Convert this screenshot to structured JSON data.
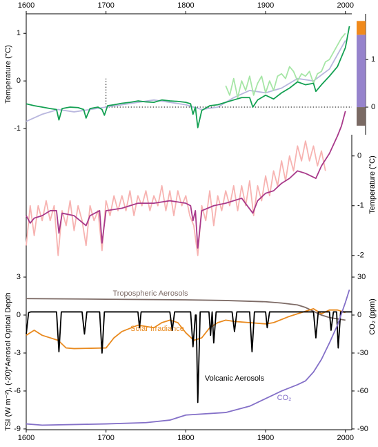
{
  "chart_data": [
    {
      "type": "line",
      "ylabel": "Temperature (°C)",
      "xaxis_position": "top",
      "xlim": [
        1600,
        2008
      ],
      "xticks": [
        1600,
        1700,
        1800,
        1900,
        2000
      ],
      "ylim": [
        -1.13,
        1.41
      ],
      "yticks": [
        -1,
        0,
        1
      ],
      "y2lim": [
        -0.58,
        1.96
      ],
      "y2ticks": [
        0,
        1
      ],
      "reference_line": -0.55,
      "reference_start": 1700,
      "bars": [
        {
          "color": "#7a6a64",
          "value": -0.39
        },
        {
          "color": "#9683cc",
          "value": 1.52
        },
        {
          "color": "#f08a1c",
          "value": 0.29
        }
      ],
      "series": [
        {
          "color": "#b9b7de",
          "x": [
            1600,
            1620,
            1640,
            1660,
            1680,
            1700,
            1720,
            1740,
            1760,
            1780,
            1800,
            1820,
            1840,
            1860,
            1880,
            1900,
            1920,
            1940,
            1960,
            1980,
            2000
          ],
          "values": [
            -0.85,
            -0.7,
            -0.6,
            -0.65,
            -0.6,
            -0.55,
            -0.5,
            -0.45,
            -0.4,
            -0.45,
            -0.5,
            -0.6,
            -0.55,
            -0.35,
            -0.2,
            -0.25,
            -0.15,
            0.05,
            0,
            0.25,
            0.85
          ]
        },
        {
          "color": "#a6e6a6",
          "x": [
            1850,
            1855,
            1860,
            1865,
            1870,
            1875,
            1880,
            1885,
            1890,
            1895,
            1900,
            1905,
            1910,
            1915,
            1920,
            1925,
            1930,
            1935,
            1940,
            1945,
            1950,
            1955,
            1960,
            1965,
            1970,
            1975,
            1980,
            1985,
            1990,
            1995,
            2000
          ],
          "values": [
            -0.1,
            -0.3,
            0.05,
            -0.35,
            0.0,
            -0.2,
            0.1,
            -0.3,
            -0.05,
            0.1,
            -0.25,
            0.0,
            -0.2,
            0.1,
            0.15,
            0.05,
            0.3,
            0.2,
            0.0,
            0.15,
            0.1,
            0.2,
            -0.05,
            0.15,
            0.2,
            0.4,
            0.45,
            0.6,
            0.75,
            0.9,
            1.0
          ]
        },
        {
          "color": "#13a052",
          "x": [
            1600,
            1610,
            1620,
            1630,
            1638,
            1641,
            1645,
            1655,
            1665,
            1672,
            1675,
            1680,
            1690,
            1695,
            1698,
            1702,
            1710,
            1720,
            1730,
            1740,
            1750,
            1760,
            1770,
            1780,
            1790,
            1800,
            1806,
            1809,
            1812,
            1815,
            1820,
            1830,
            1840,
            1850,
            1860,
            1870,
            1880,
            1884,
            1890,
            1900,
            1910,
            1920,
            1930,
            1940,
            1950,
            1960,
            1963,
            1970,
            1980,
            1990,
            1995,
            2000,
            2005
          ],
          "values": [
            -0.48,
            -0.52,
            -0.55,
            -0.58,
            -0.6,
            -0.82,
            -0.58,
            -0.55,
            -0.56,
            -0.6,
            -0.78,
            -0.58,
            -0.55,
            -0.6,
            -0.72,
            -0.52,
            -0.5,
            -0.47,
            -0.45,
            -0.42,
            -0.44,
            -0.45,
            -0.4,
            -0.42,
            -0.43,
            -0.45,
            -0.48,
            -0.7,
            -0.55,
            -0.98,
            -0.62,
            -0.52,
            -0.5,
            -0.45,
            -0.4,
            -0.35,
            -0.35,
            -0.55,
            -0.4,
            -0.3,
            -0.38,
            -0.25,
            -0.15,
            -0.02,
            -0.08,
            -0.05,
            -0.22,
            -0.08,
            0.1,
            0.3,
            0.5,
            0.7,
            1.15
          ]
        }
      ]
    },
    {
      "type": "line",
      "ylabel": "Temperature (°C)",
      "yaxis_position": "right",
      "xlim": [
        1600,
        2008
      ],
      "ylim": [
        -2.35,
        1.19
      ],
      "yticks": [
        -2,
        -1,
        0
      ],
      "series": [
        {
          "color": "#f7b3b1",
          "x": [
            1600,
            1605,
            1610,
            1615,
            1620,
            1625,
            1630,
            1635,
            1640,
            1645,
            1650,
            1655,
            1660,
            1665,
            1670,
            1675,
            1680,
            1685,
            1690,
            1695,
            1700,
            1705,
            1710,
            1715,
            1720,
            1725,
            1730,
            1735,
            1740,
            1745,
            1750,
            1755,
            1760,
            1765,
            1770,
            1775,
            1780,
            1785,
            1790,
            1795,
            1800,
            1805,
            1810,
            1815,
            1820,
            1825,
            1830,
            1835,
            1840,
            1845,
            1850,
            1855,
            1860,
            1865,
            1870,
            1875,
            1880,
            1885,
            1890,
            1895,
            1900,
            1905,
            1910,
            1915,
            1920,
            1925,
            1930,
            1935,
            1940,
            1945,
            1950,
            1955,
            1960,
            1965,
            1970,
            1975
          ],
          "values": [
            -1.8,
            -1.0,
            -1.6,
            -1.0,
            -1.3,
            -0.9,
            -1.3,
            -1.0,
            -2.0,
            -1.1,
            -1.4,
            -0.9,
            -1.5,
            -1.0,
            -1.3,
            -1.8,
            -1.0,
            -1.3,
            -1.1,
            -1.9,
            -0.9,
            -1.2,
            -0.8,
            -1.1,
            -0.8,
            -1.1,
            -0.7,
            -1.2,
            -0.8,
            -1.0,
            -0.7,
            -1.1,
            -0.8,
            -1.0,
            -0.6,
            -1.1,
            -0.7,
            -1.2,
            -0.7,
            -1.0,
            -0.8,
            -1.2,
            -1.4,
            -2.0,
            -1.0,
            -1.3,
            -0.7,
            -1.4,
            -0.8,
            -1.1,
            -0.7,
            -1.0,
            -0.6,
            -1.1,
            -0.6,
            -1.0,
            -0.5,
            -1.2,
            -0.6,
            -0.9,
            -0.4,
            -0.8,
            -0.3,
            -0.6,
            -0.1,
            -0.5,
            0.0,
            -0.3,
            0.2,
            -0.1,
            0.3,
            -0.1,
            0.2,
            -0.2,
            0.1,
            -0.3
          ]
        },
        {
          "color": "#a8398a",
          "x": [
            1600,
            1605,
            1610,
            1620,
            1630,
            1638,
            1641,
            1645,
            1660,
            1675,
            1680,
            1692,
            1695,
            1700,
            1720,
            1740,
            1760,
            1780,
            1800,
            1806,
            1809,
            1812,
            1815,
            1820,
            1835,
            1850,
            1870,
            1884,
            1890,
            1900,
            1910,
            1920,
            1930,
            1940,
            1950,
            1963,
            1970,
            1980,
            1990,
            1995,
            2000
          ],
          "values": [
            -1.2,
            -1.35,
            -1.25,
            -1.2,
            -1.1,
            -1.1,
            -1.55,
            -1.15,
            -1.2,
            -1.4,
            -1.2,
            -1.1,
            -1.75,
            -1.1,
            -1.05,
            -0.95,
            -0.95,
            -0.9,
            -0.95,
            -1.0,
            -1.3,
            -1.1,
            -1.85,
            -1.1,
            -1.0,
            -0.95,
            -0.85,
            -1.15,
            -0.9,
            -0.75,
            -0.7,
            -0.55,
            -0.45,
            -0.3,
            -0.35,
            -0.45,
            -0.2,
            0.05,
            0.4,
            0.6,
            0.9
          ]
        }
      ]
    },
    {
      "type": "line",
      "ylabel": "TSI (W m⁻²), (-20)*Aerosol Optical Depth",
      "y2label": "CO₂ (ppm)",
      "xaxis_position": "bottom",
      "xlim": [
        1600,
        2008
      ],
      "xticks": [
        1600,
        1700,
        1800,
        1900,
        2000
      ],
      "ylim": [
        -9.06,
        3.33
      ],
      "yticks": [
        -9,
        -6,
        -3,
        0,
        3
      ],
      "y2lim": [
        -90.6,
        33.3
      ],
      "y2ticks": [
        -90,
        -60,
        -30,
        0,
        30
      ],
      "series": [
        {
          "name": "Tropospheric Aerosols",
          "color": "#7d6b66",
          "x": [
            1600,
            1700,
            1800,
            1850,
            1900,
            1920,
            1940,
            1950,
            1960,
            1970,
            1980,
            1990,
            2000
          ],
          "values": [
            1.3,
            1.25,
            1.2,
            1.15,
            1.05,
            0.95,
            0.8,
            0.6,
            0.3,
            0.0,
            -0.2,
            -0.3,
            -0.4
          ]
        },
        {
          "name": "Solar Irradiance",
          "color": "#e98a1f",
          "x": [
            1600,
            1610,
            1620,
            1640,
            1650,
            1660,
            1700,
            1710,
            1720,
            1740,
            1760,
            1770,
            1780,
            1790,
            1800,
            1810,
            1820,
            1830,
            1840,
            1850,
            1860,
            1880,
            1900,
            1910,
            1930,
            1950,
            1960,
            1970,
            1980,
            1990,
            2000
          ],
          "values": [
            -1.6,
            -1.2,
            -1.6,
            -2.0,
            -2.6,
            -2.65,
            -2.6,
            -1.8,
            -1.3,
            -0.8,
            -1.0,
            -0.6,
            -0.4,
            -0.6,
            -1.4,
            -2.0,
            -1.8,
            -1.0,
            -0.6,
            -0.4,
            -0.5,
            -0.6,
            -0.7,
            -0.6,
            -0.1,
            0.3,
            0.5,
            0.1,
            0.4,
            0.4,
            0.2
          ]
        },
        {
          "name": "Volcanic Aerosols",
          "color": "#000000",
          "x": [
            1600,
            1603,
            1606,
            1638,
            1641,
            1644,
            1670,
            1673,
            1676,
            1692,
            1695,
            1698,
            1740,
            1742,
            1744,
            1780,
            1783,
            1786,
            1806,
            1809,
            1812,
            1813,
            1815,
            1818,
            1829,
            1831,
            1833,
            1835,
            1838,
            1858,
            1861,
            1864,
            1880,
            1883,
            1886,
            1900,
            1902,
            1905,
            1960,
            1963,
            1966,
            1980,
            1982,
            1985,
            1989,
            1991,
            1994,
            2008
          ],
          "values": [
            -1.5,
            0.2,
            0.25,
            0.25,
            -2.9,
            0.25,
            0.25,
            -1.5,
            0.25,
            0.25,
            -3.0,
            0.25,
            0.25,
            -1.0,
            0.25,
            0.25,
            -1.2,
            0.25,
            0.25,
            -2.5,
            0.0,
            0.0,
            -6.9,
            0.25,
            0.25,
            -1.6,
            0.25,
            -2.2,
            0.25,
            0.25,
            -1.3,
            0.25,
            0.25,
            -2.9,
            0.25,
            0.25,
            -1.0,
            0.25,
            0.25,
            -1.8,
            0.25,
            0.25,
            -1.2,
            0.25,
            0.25,
            -2.6,
            0.25,
            0.25
          ]
        },
        {
          "name": "CO₂",
          "color": "#8470c8",
          "axis": "y2",
          "x": [
            1600,
            1620,
            1700,
            1750,
            1780,
            1800,
            1850,
            1880,
            1900,
            1920,
            1940,
            1950,
            1960,
            1970,
            1980,
            1990,
            2000,
            2005
          ],
          "values": [
            -86,
            -87,
            -86,
            -85,
            -83,
            -79,
            -77,
            -72,
            -66,
            -60,
            -55,
            -52,
            -45,
            -35,
            -22,
            -8,
            10,
            20
          ]
        }
      ]
    }
  ]
}
